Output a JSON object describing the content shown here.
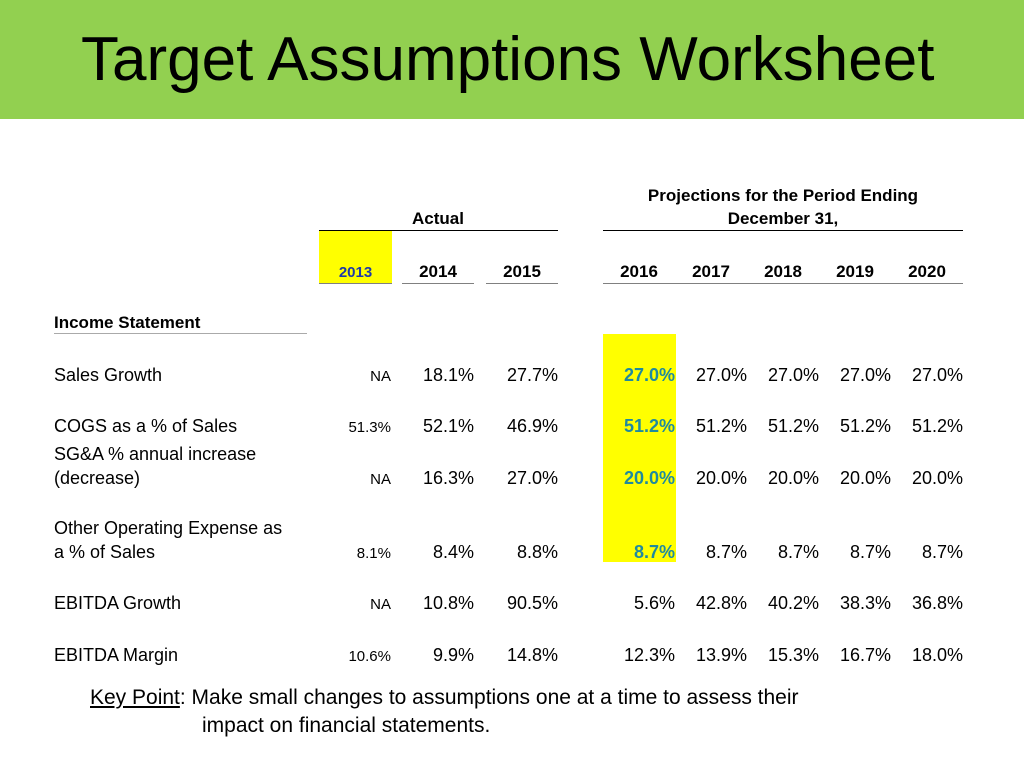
{
  "title": "Target Assumptions Worksheet",
  "headers": {
    "actual": "Actual",
    "projections_line1": "Projections for the Period Ending",
    "projections_line2": "December 31,",
    "years": [
      "2013",
      "2014",
      "2015",
      "2016",
      "2017",
      "2018",
      "2019",
      "2020"
    ]
  },
  "section": "Income Statement",
  "rows": [
    {
      "label": "Sales Growth",
      "values": [
        "NA",
        "18.1%",
        "27.7%",
        "27.0%",
        "27.0%",
        "27.0%",
        "27.0%",
        "27.0%"
      ]
    },
    {
      "label": "COGS as a % of Sales",
      "values": [
        "51.3%",
        "52.1%",
        "46.9%",
        "51.2%",
        "51.2%",
        "51.2%",
        "51.2%",
        "51.2%"
      ]
    },
    {
      "label_line1": "SG&A % annual increase",
      "label_line2": "(decrease)",
      "values": [
        "NA",
        "16.3%",
        "27.0%",
        "20.0%",
        "20.0%",
        "20.0%",
        "20.0%",
        "20.0%"
      ]
    },
    {
      "label_line1": "Other Operating Expense as",
      "label_line2": "a % of Sales",
      "values": [
        "8.1%",
        "8.4%",
        "8.8%",
        "8.7%",
        "8.7%",
        "8.7%",
        "8.7%",
        "8.7%"
      ]
    },
    {
      "label": "EBITDA Growth",
      "values": [
        "NA",
        "10.8%",
        "90.5%",
        "5.6%",
        "42.8%",
        "40.2%",
        "38.3%",
        "36.8%"
      ]
    },
    {
      "label": "EBITDA Margin",
      "values": [
        "10.6%",
        "9.9%",
        "14.8%",
        "12.3%",
        "13.9%",
        "15.3%",
        "16.7%",
        "18.0%"
      ]
    }
  ],
  "key_point": {
    "label": "Key Point",
    "line1": ": Make small changes to assumptions one at a time to assess their",
    "line2": "impact on financial statements."
  },
  "colors": {
    "banner": "#92d050",
    "highlight": "#ffff00",
    "projection_text": "#1f8a9e",
    "year_2013_text": "#1f3aa8"
  }
}
